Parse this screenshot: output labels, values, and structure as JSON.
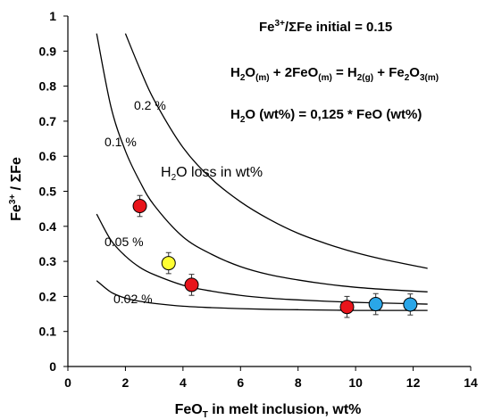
{
  "chart_data": {
    "type": "scatter",
    "xlabel": {
      "main": "FeO",
      "sub": "T",
      "rest": " in melt inclusion,  wt%"
    },
    "ylabel": {
      "pre": "Fe",
      "sup": "3+",
      "post": " / ΣFe"
    },
    "xlim": [
      0,
      14
    ],
    "ylim": [
      0,
      1
    ],
    "x_ticks": [
      0,
      2,
      4,
      6,
      8,
      10,
      12,
      14
    ],
    "y_ticks": [
      "0",
      "0.1",
      "0.2",
      "0.3",
      "0.4",
      "0.5",
      "0.6",
      "0.7",
      "0.8",
      "0.9",
      "1"
    ],
    "grid": false,
    "annotations": {
      "line1": {
        "pre": "Fe",
        "sup": "3+",
        "post": "/ΣFe initial = 0.15"
      },
      "line2": {
        "parts": [
          {
            "t": "H",
            "sub": false
          },
          {
            "t": "2",
            "sub": true
          },
          {
            "t": "O",
            "sub": false
          },
          {
            "t": "(m)",
            "sub": true
          },
          {
            "t": " + 2FeO",
            "sub": false
          },
          {
            "t": "(m)",
            "sub": true
          },
          {
            "t": " = H",
            "sub": false
          },
          {
            "t": "2(g)",
            "sub": true
          },
          {
            "t": " + Fe",
            "sub": false
          },
          {
            "t": "2",
            "sub": true
          },
          {
            "t": "O",
            "sub": false
          },
          {
            "t": "3(m)",
            "sub": true
          }
        ]
      },
      "line3": {
        "pre": "H",
        "sub": "2",
        "post": "O (wt%)  =  0,125 * FeO (wt%)"
      },
      "loss_label": {
        "pre": "H",
        "sub": "2",
        "post": "O loss in wt%"
      }
    },
    "curves": [
      {
        "label": "0.2 %",
        "points": [
          [
            2.0,
            0.95
          ],
          [
            2.5,
            0.85
          ],
          [
            3.0,
            0.76
          ],
          [
            4.0,
            0.625
          ],
          [
            5.0,
            0.535
          ],
          [
            6.0,
            0.47
          ],
          [
            7.0,
            0.42
          ],
          [
            8.0,
            0.38
          ],
          [
            9.0,
            0.35
          ],
          [
            10.0,
            0.325
          ],
          [
            11.0,
            0.305
          ],
          [
            12.5,
            0.28
          ]
        ]
      },
      {
        "label": "0.1 %",
        "points": [
          [
            1.0,
            0.95
          ],
          [
            1.5,
            0.74
          ],
          [
            2.0,
            0.615
          ],
          [
            2.5,
            0.528
          ],
          [
            3.0,
            0.46
          ],
          [
            4.0,
            0.37
          ],
          [
            5.0,
            0.32
          ],
          [
            6.0,
            0.285
          ],
          [
            7.0,
            0.262
          ],
          [
            8.0,
            0.247
          ],
          [
            9.0,
            0.235
          ],
          [
            10.0,
            0.226
          ],
          [
            11.0,
            0.22
          ],
          [
            12.5,
            0.213
          ]
        ]
      },
      {
        "label": "0.05 %",
        "points": [
          [
            1.0,
            0.435
          ],
          [
            1.5,
            0.36
          ],
          [
            2.0,
            0.315
          ],
          [
            2.5,
            0.283
          ],
          [
            3.0,
            0.262
          ],
          [
            4.0,
            0.232
          ],
          [
            5.0,
            0.215
          ],
          [
            6.0,
            0.203
          ],
          [
            7.0,
            0.195
          ],
          [
            8.0,
            0.19
          ],
          [
            9.0,
            0.186
          ],
          [
            10.0,
            0.183
          ],
          [
            11.0,
            0.181
          ],
          [
            12.5,
            0.178
          ]
        ]
      },
      {
        "label": "0.02 %",
        "points": [
          [
            1.0,
            0.245
          ],
          [
            1.5,
            0.212
          ],
          [
            2.0,
            0.195
          ],
          [
            2.5,
            0.186
          ],
          [
            3.0,
            0.18
          ],
          [
            4.0,
            0.172
          ],
          [
            5.0,
            0.168
          ],
          [
            6.0,
            0.165
          ],
          [
            7.0,
            0.163
          ],
          [
            8.0,
            0.162
          ],
          [
            9.0,
            0.161
          ],
          [
            10.0,
            0.16
          ],
          [
            11.0,
            0.16
          ],
          [
            12.5,
            0.16
          ]
        ]
      }
    ],
    "points": [
      {
        "x": 2.5,
        "y": 0.458,
        "err": 0.03,
        "color": "#e8141b"
      },
      {
        "x": 3.5,
        "y": 0.295,
        "err": 0.03,
        "color": "#ffff33"
      },
      {
        "x": 4.3,
        "y": 0.233,
        "err": 0.03,
        "color": "#e8141b"
      },
      {
        "x": 9.7,
        "y": 0.17,
        "err": 0.03,
        "color": "#e8141b"
      },
      {
        "x": 10.7,
        "y": 0.178,
        "err": 0.03,
        "color": "#2aa6e8"
      },
      {
        "x": 11.9,
        "y": 0.177,
        "err": 0.03,
        "color": "#2aa6e8"
      }
    ]
  }
}
